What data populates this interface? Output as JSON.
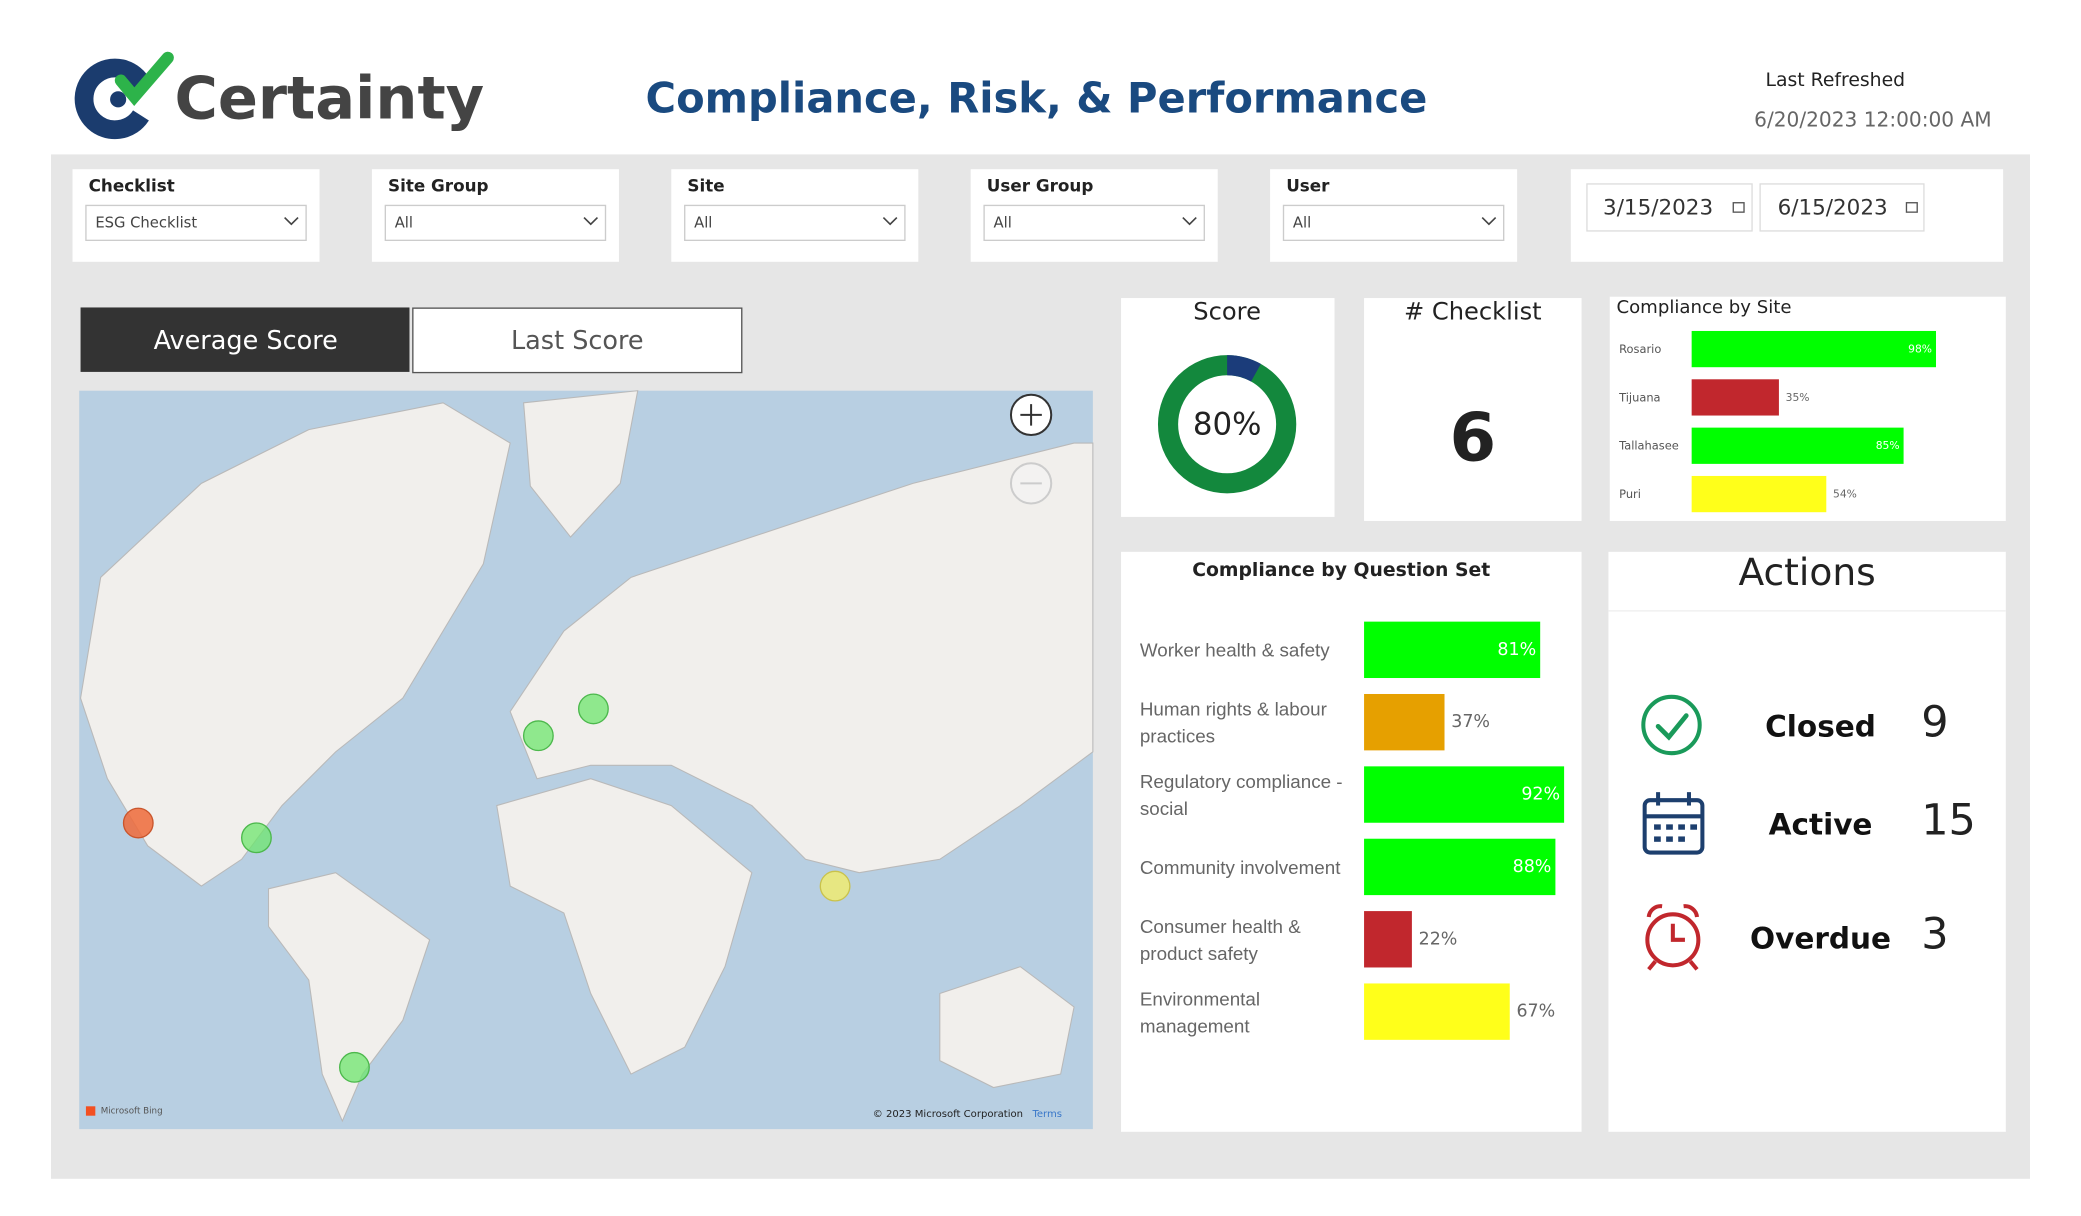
{
  "header": {
    "logo_text": "Certainty",
    "title": "Compliance, Risk, & Performance",
    "refresh_label": "Last Refreshed",
    "refresh_value": "6/20/2023 12:00:00 AM"
  },
  "filters": [
    {
      "label": "Checklist",
      "value": "ESG Checklist"
    },
    {
      "label": "Site Group",
      "value": "All"
    },
    {
      "label": "Site",
      "value": "All"
    },
    {
      "label": "User Group",
      "value": "All"
    },
    {
      "label": "User",
      "value": "All"
    }
  ],
  "date_range": [
    "3/15/2023",
    "6/15/2023"
  ],
  "tabs": [
    "Average Score",
    "Last Score"
  ],
  "map": {
    "attribution": "Microsoft Bing",
    "copyright": "© 2023 Microsoft Corporation",
    "terms": "Terms"
  },
  "score": {
    "title": "Score",
    "value": "80%"
  },
  "checklist": {
    "title": "# Checklist",
    "value": 6
  },
  "chart_data": [
    {
      "type": "bar",
      "title": "Compliance by Site",
      "categories": [
        "Rosario",
        "Tijuana",
        "Tallahasee",
        "Puri"
      ],
      "values": [
        98,
        35,
        85,
        54
      ],
      "value_labels": [
        "98%",
        "35%",
        "85%",
        "54%"
      ],
      "colors": [
        "#00ff00",
        "#c1272d",
        "#00ff00",
        "#ffff1a"
      ]
    },
    {
      "type": "bar",
      "title": "Compliance by Question Set",
      "categories": [
        "Worker health & safety",
        "Human rights & labour practices",
        "Regulatory compliance - social",
        "Community involvement",
        "Consumer health & product safety",
        "Environmental management"
      ],
      "values": [
        81,
        37,
        92,
        88,
        22,
        67
      ],
      "value_labels": [
        "81%",
        "37%",
        "92%",
        "88%",
        "22%",
        "67%"
      ],
      "colors": [
        "#00ff00",
        "#e6a000",
        "#00ff00",
        "#00ff00",
        "#c1272d",
        "#ffff1a"
      ]
    }
  ],
  "actions": {
    "title": "Actions",
    "items": [
      {
        "label": "Closed",
        "value": 9
      },
      {
        "label": "Active",
        "value": 15
      },
      {
        "label": "Overdue",
        "value": 3
      }
    ]
  }
}
